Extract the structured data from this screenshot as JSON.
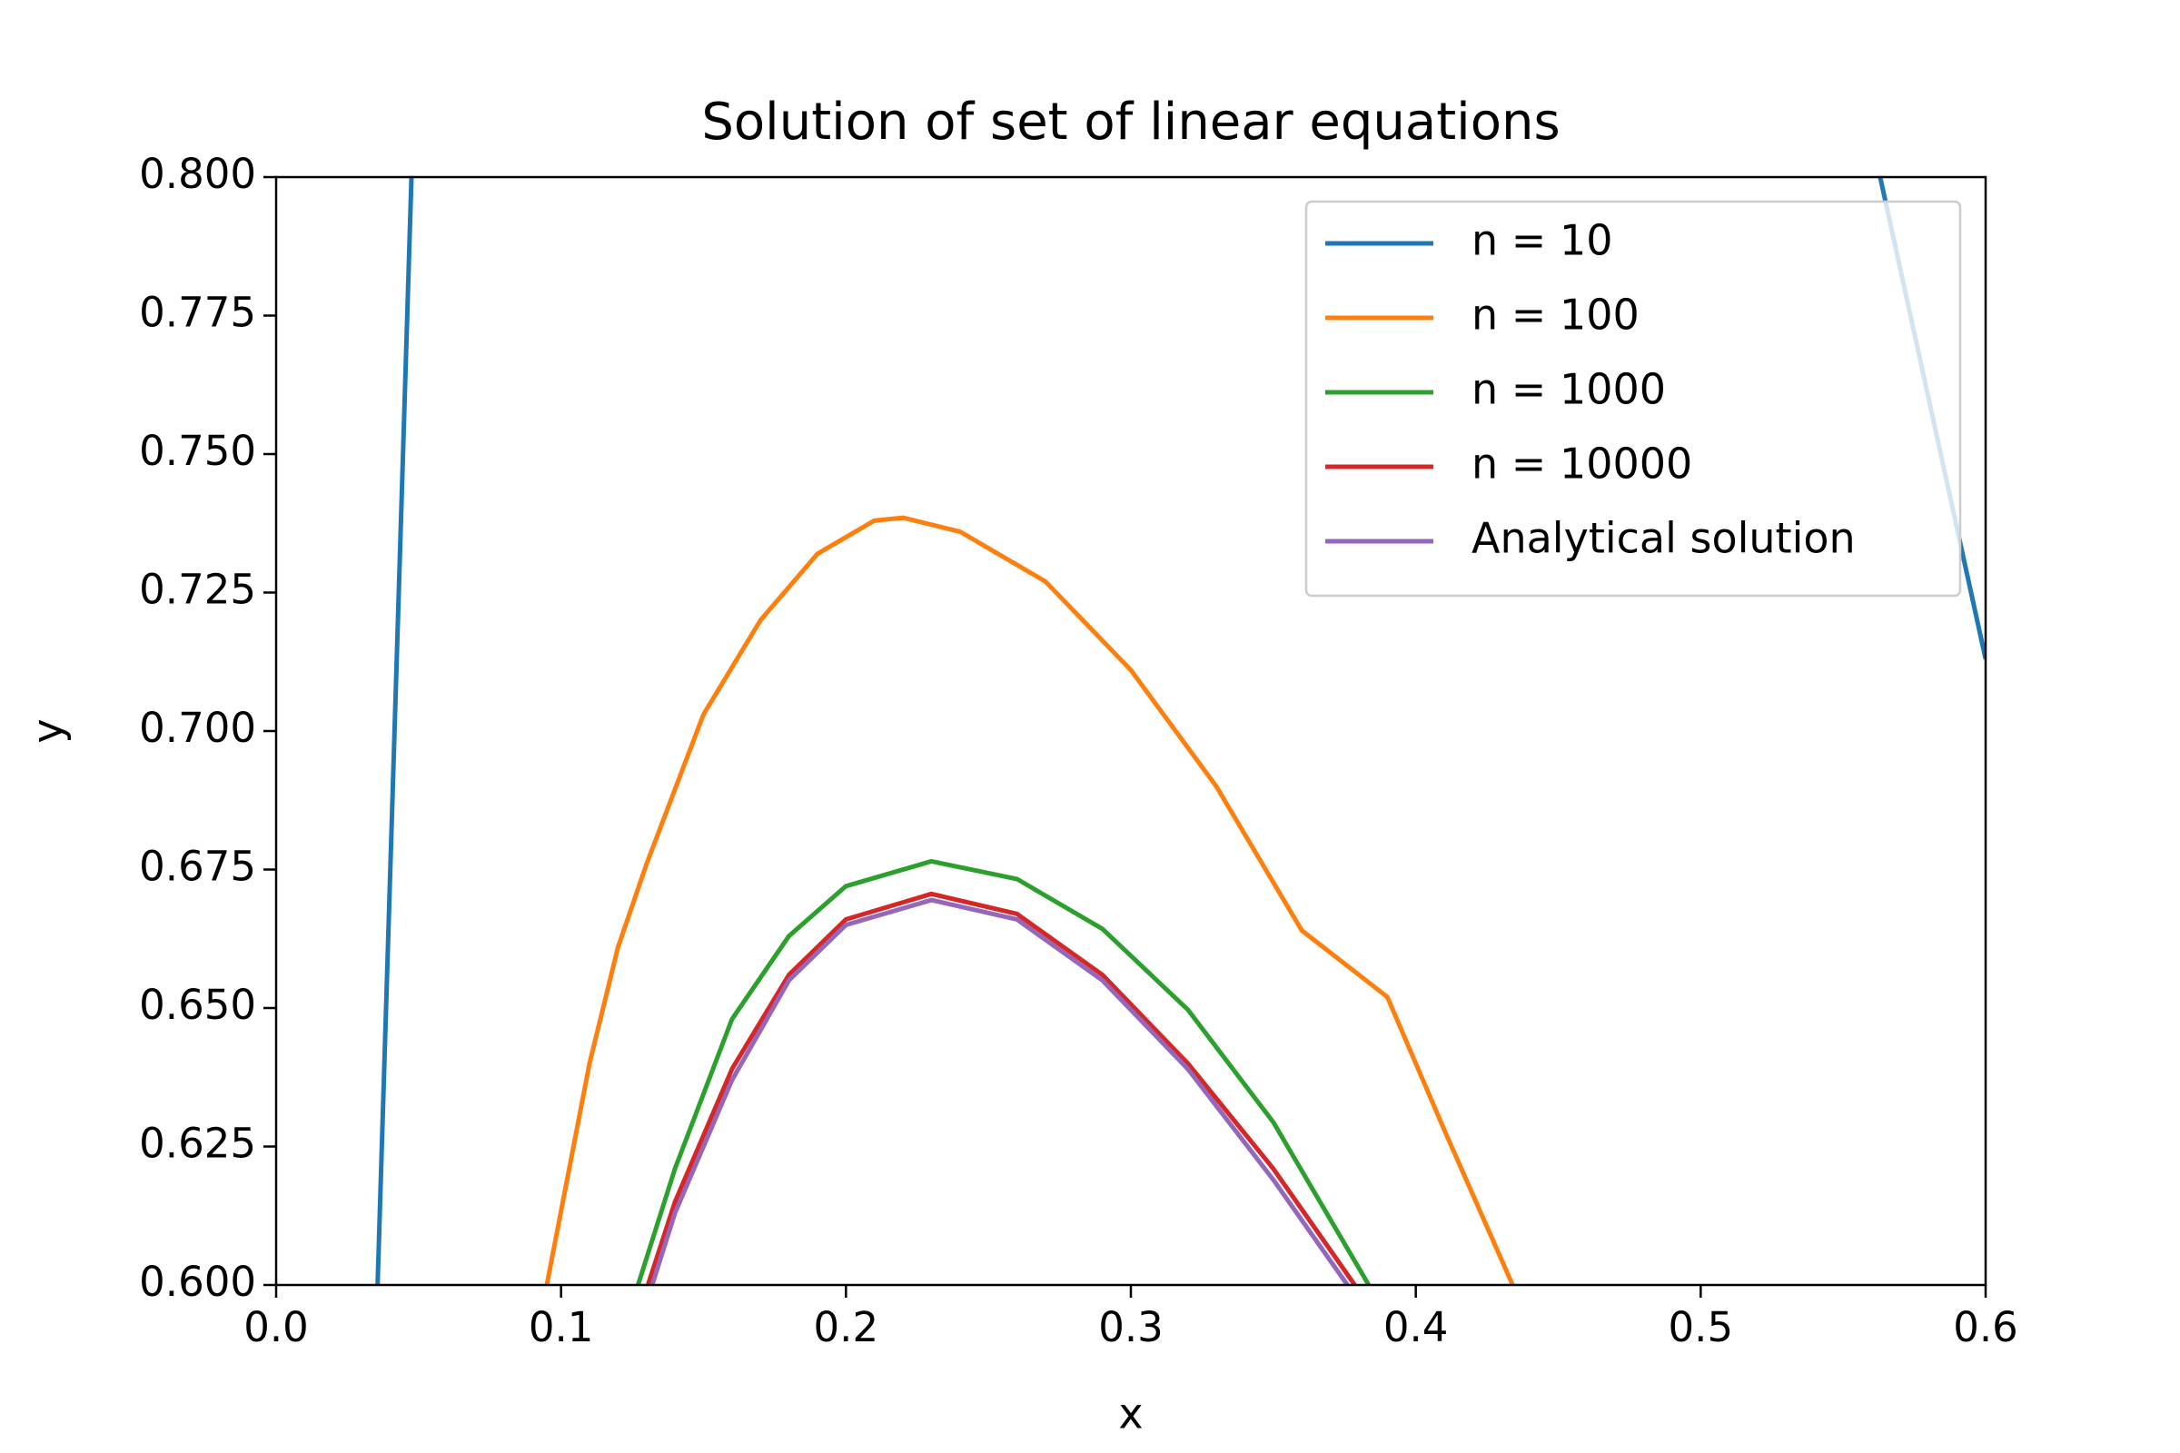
{
  "chart_data": {
    "type": "line",
    "title": "Solution of set of linear equations",
    "x_label": "x",
    "y_label": "y",
    "xlim": [
      0,
      0.6
    ],
    "ylim": [
      0.6,
      0.8
    ],
    "xticks": [
      {
        "value": 0,
        "label": "0.0"
      },
      0.1,
      0.2,
      0.3,
      0.4,
      0.5,
      0.6
    ],
    "yticks": [
      {
        "value": 0.6,
        "label": "0.600"
      },
      {
        "value": 0.625,
        "label": "0.625"
      },
      {
        "value": 0.65,
        "label": "0.650"
      },
      {
        "value": 0.675,
        "label": "0.675"
      },
      {
        "value": 0.7,
        "label": "0.700"
      },
      {
        "value": 0.725,
        "label": "0.725"
      },
      {
        "value": 0.75,
        "label": "0.750"
      },
      {
        "value": 0.775,
        "label": "0.775"
      },
      {
        "value": 0.8,
        "label": "0.800"
      }
    ],
    "legend": "upper right",
    "grid": false,
    "series": [
      {
        "name": "n = 10",
        "color": "#1f77b4",
        "x": [
          0.0356,
          0.0475,
          null,
          0.563,
          0.6
        ],
        "values": [
          0.6,
          0.8,
          null,
          0.8,
          0.713
        ]
      },
      {
        "name": "n = 100",
        "color": "#ff7f0e",
        "x": [
          0.095,
          0.11,
          0.12,
          0.13,
          0.15,
          0.17,
          0.19,
          0.21,
          0.22,
          0.24,
          0.27,
          0.3,
          0.33,
          0.36,
          0.39,
          0.41,
          0.434
        ],
        "values": [
          0.6,
          0.64,
          0.661,
          0.676,
          0.703,
          0.72,
          0.732,
          0.738,
          0.7385,
          0.736,
          0.727,
          0.711,
          0.69,
          0.664,
          0.652,
          0.628,
          0.6
        ]
      },
      {
        "name": "n = 1000",
        "color": "#2ca02c",
        "x": [
          0.127,
          0.14,
          0.16,
          0.18,
          0.2,
          0.23,
          0.26,
          0.29,
          0.32,
          0.35,
          0.3835
        ],
        "values": [
          0.6,
          0.621,
          0.648,
          0.663,
          0.672,
          0.6765,
          0.6733,
          0.6643,
          0.6497,
          0.6294,
          0.6
        ]
      },
      {
        "name": "n = 10000",
        "color": "#d62728",
        "x": [
          0.1305,
          0.14,
          0.16,
          0.18,
          0.2,
          0.23,
          0.26,
          0.29,
          0.32,
          0.35,
          0.3786
        ],
        "values": [
          0.6,
          0.615,
          0.639,
          0.656,
          0.666,
          0.6706,
          0.667,
          0.656,
          0.64,
          0.621,
          0.6
        ]
      },
      {
        "name": "Analytical solution",
        "color": "#9467bd",
        "x": [
          0.132,
          0.14,
          0.16,
          0.18,
          0.2,
          0.23,
          0.26,
          0.29,
          0.32,
          0.35,
          0.376
        ],
        "values": [
          0.6,
          0.613,
          0.637,
          0.655,
          0.665,
          0.6695,
          0.666,
          0.655,
          0.639,
          0.619,
          0.6
        ]
      }
    ]
  }
}
